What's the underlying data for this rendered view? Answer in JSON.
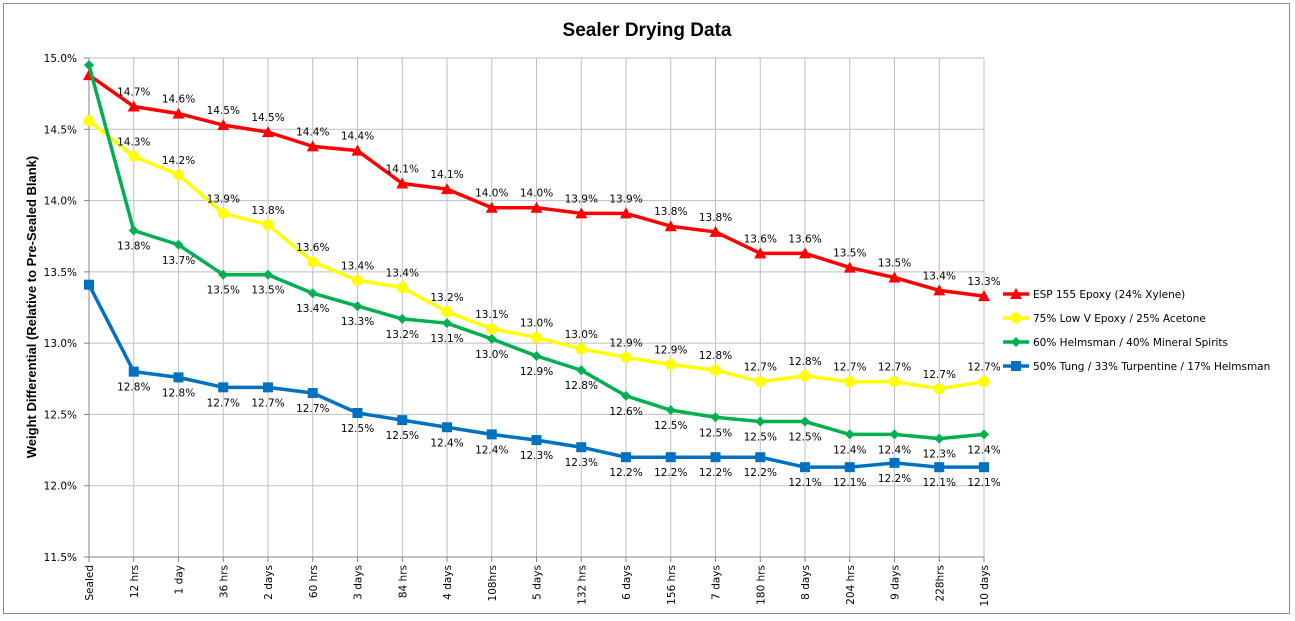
{
  "chart_data": {
    "type": "line",
    "title": "Sealer Drying Data",
    "xlabel": "",
    "ylabel": "Weight Differential (Relative to Pre-Sealed Blank)",
    "ylim": [
      11.5,
      15.0
    ],
    "ytick_step": 0.5,
    "ytick_labels": [
      "11.5%",
      "12.0%",
      "12.5%",
      "13.0%",
      "13.5%",
      "14.0%",
      "14.5%",
      "15.0%"
    ],
    "grid": true,
    "legend_position": "right",
    "categories": [
      "Sealed",
      "12 hrs",
      "1 day",
      "36 hrs",
      "2 days",
      "60 hrs",
      "3 days",
      "84 hrs",
      "4 days",
      "108hrs",
      "5 days",
      "132 hrs",
      "6 days",
      "156 hrs",
      "7 days",
      "180 hrs",
      "8 days",
      "204 hrs",
      "9 days",
      "228hrs",
      "10 days"
    ],
    "series": [
      {
        "name": "ESP 155 Epoxy (24% Xylene)",
        "color": "#ff0000",
        "marker": "triangle",
        "label_position": "above",
        "values": [
          14.88,
          14.66,
          14.61,
          14.53,
          14.48,
          14.38,
          14.35,
          14.12,
          14.08,
          13.95,
          13.95,
          13.91,
          13.91,
          13.82,
          13.78,
          13.63,
          13.63,
          13.53,
          13.46,
          13.37,
          13.33
        ],
        "labels": [
          "",
          "14.7%",
          "14.6%",
          "14.5%",
          "14.5%",
          "14.4%",
          "14.4%",
          "14.1%",
          "14.1%",
          "14.0%",
          "14.0%",
          "13.9%",
          "13.9%",
          "13.8%",
          "13.8%",
          "13.6%",
          "13.6%",
          "13.5%",
          "13.5%",
          "13.4%",
          "13.3%"
        ]
      },
      {
        "name": "75% Low V Epoxy / 25% Acetone",
        "color": "#ffff00",
        "marker": "circle",
        "label_position": "above",
        "values": [
          14.56,
          14.31,
          14.18,
          13.91,
          13.83,
          13.57,
          13.44,
          13.39,
          13.22,
          13.1,
          13.04,
          12.96,
          12.9,
          12.85,
          12.81,
          12.73,
          12.77,
          12.73,
          12.73,
          12.68,
          12.73
        ],
        "labels": [
          "",
          "14.3%",
          "14.2%",
          "13.9%",
          "13.8%",
          "13.6%",
          "13.4%",
          "13.4%",
          "13.2%",
          "13.1%",
          "13.0%",
          "13.0%",
          "12.9%",
          "12.9%",
          "12.8%",
          "12.7%",
          "12.8%",
          "12.7%",
          "12.7%",
          "12.7%",
          "12.7%"
        ]
      },
      {
        "name": "60% Helmsman  / 40% Mineral Spirits",
        "color": "#00b050",
        "marker": "diamond",
        "label_position": "below",
        "values": [
          14.95,
          13.79,
          13.69,
          13.48,
          13.48,
          13.35,
          13.26,
          13.17,
          13.14,
          13.03,
          12.91,
          12.81,
          12.63,
          12.53,
          12.48,
          12.45,
          12.45,
          12.36,
          12.36,
          12.33,
          12.36
        ],
        "labels": [
          "",
          "13.8%",
          "13.7%",
          "13.5%",
          "13.5%",
          "13.4%",
          "13.3%",
          "13.2%",
          "13.1%",
          "13.0%",
          "12.9%",
          "12.8%",
          "12.6%",
          "12.5%",
          "12.5%",
          "12.5%",
          "12.5%",
          "12.4%",
          "12.4%",
          "12.3%",
          "12.4%"
        ]
      },
      {
        "name": "50% Tung / 33% Turpentine / 17% Helmsman",
        "color": "#0070c0",
        "marker": "square",
        "label_position": "below",
        "values": [
          13.41,
          12.8,
          12.76,
          12.69,
          12.69,
          12.65,
          12.51,
          12.46,
          12.41,
          12.36,
          12.32,
          12.27,
          12.2,
          12.2,
          12.2,
          12.2,
          12.13,
          12.13,
          12.16,
          12.13,
          12.13
        ],
        "labels": [
          "",
          "12.8%",
          "12.8%",
          "12.7%",
          "12.7%",
          "12.7%",
          "12.5%",
          "12.5%",
          "12.4%",
          "12.4%",
          "12.3%",
          "12.3%",
          "12.2%",
          "12.2%",
          "12.2%",
          "12.2%",
          "12.1%",
          "12.1%",
          "12.2%",
          "12.1%",
          "12.1%"
        ]
      }
    ]
  }
}
